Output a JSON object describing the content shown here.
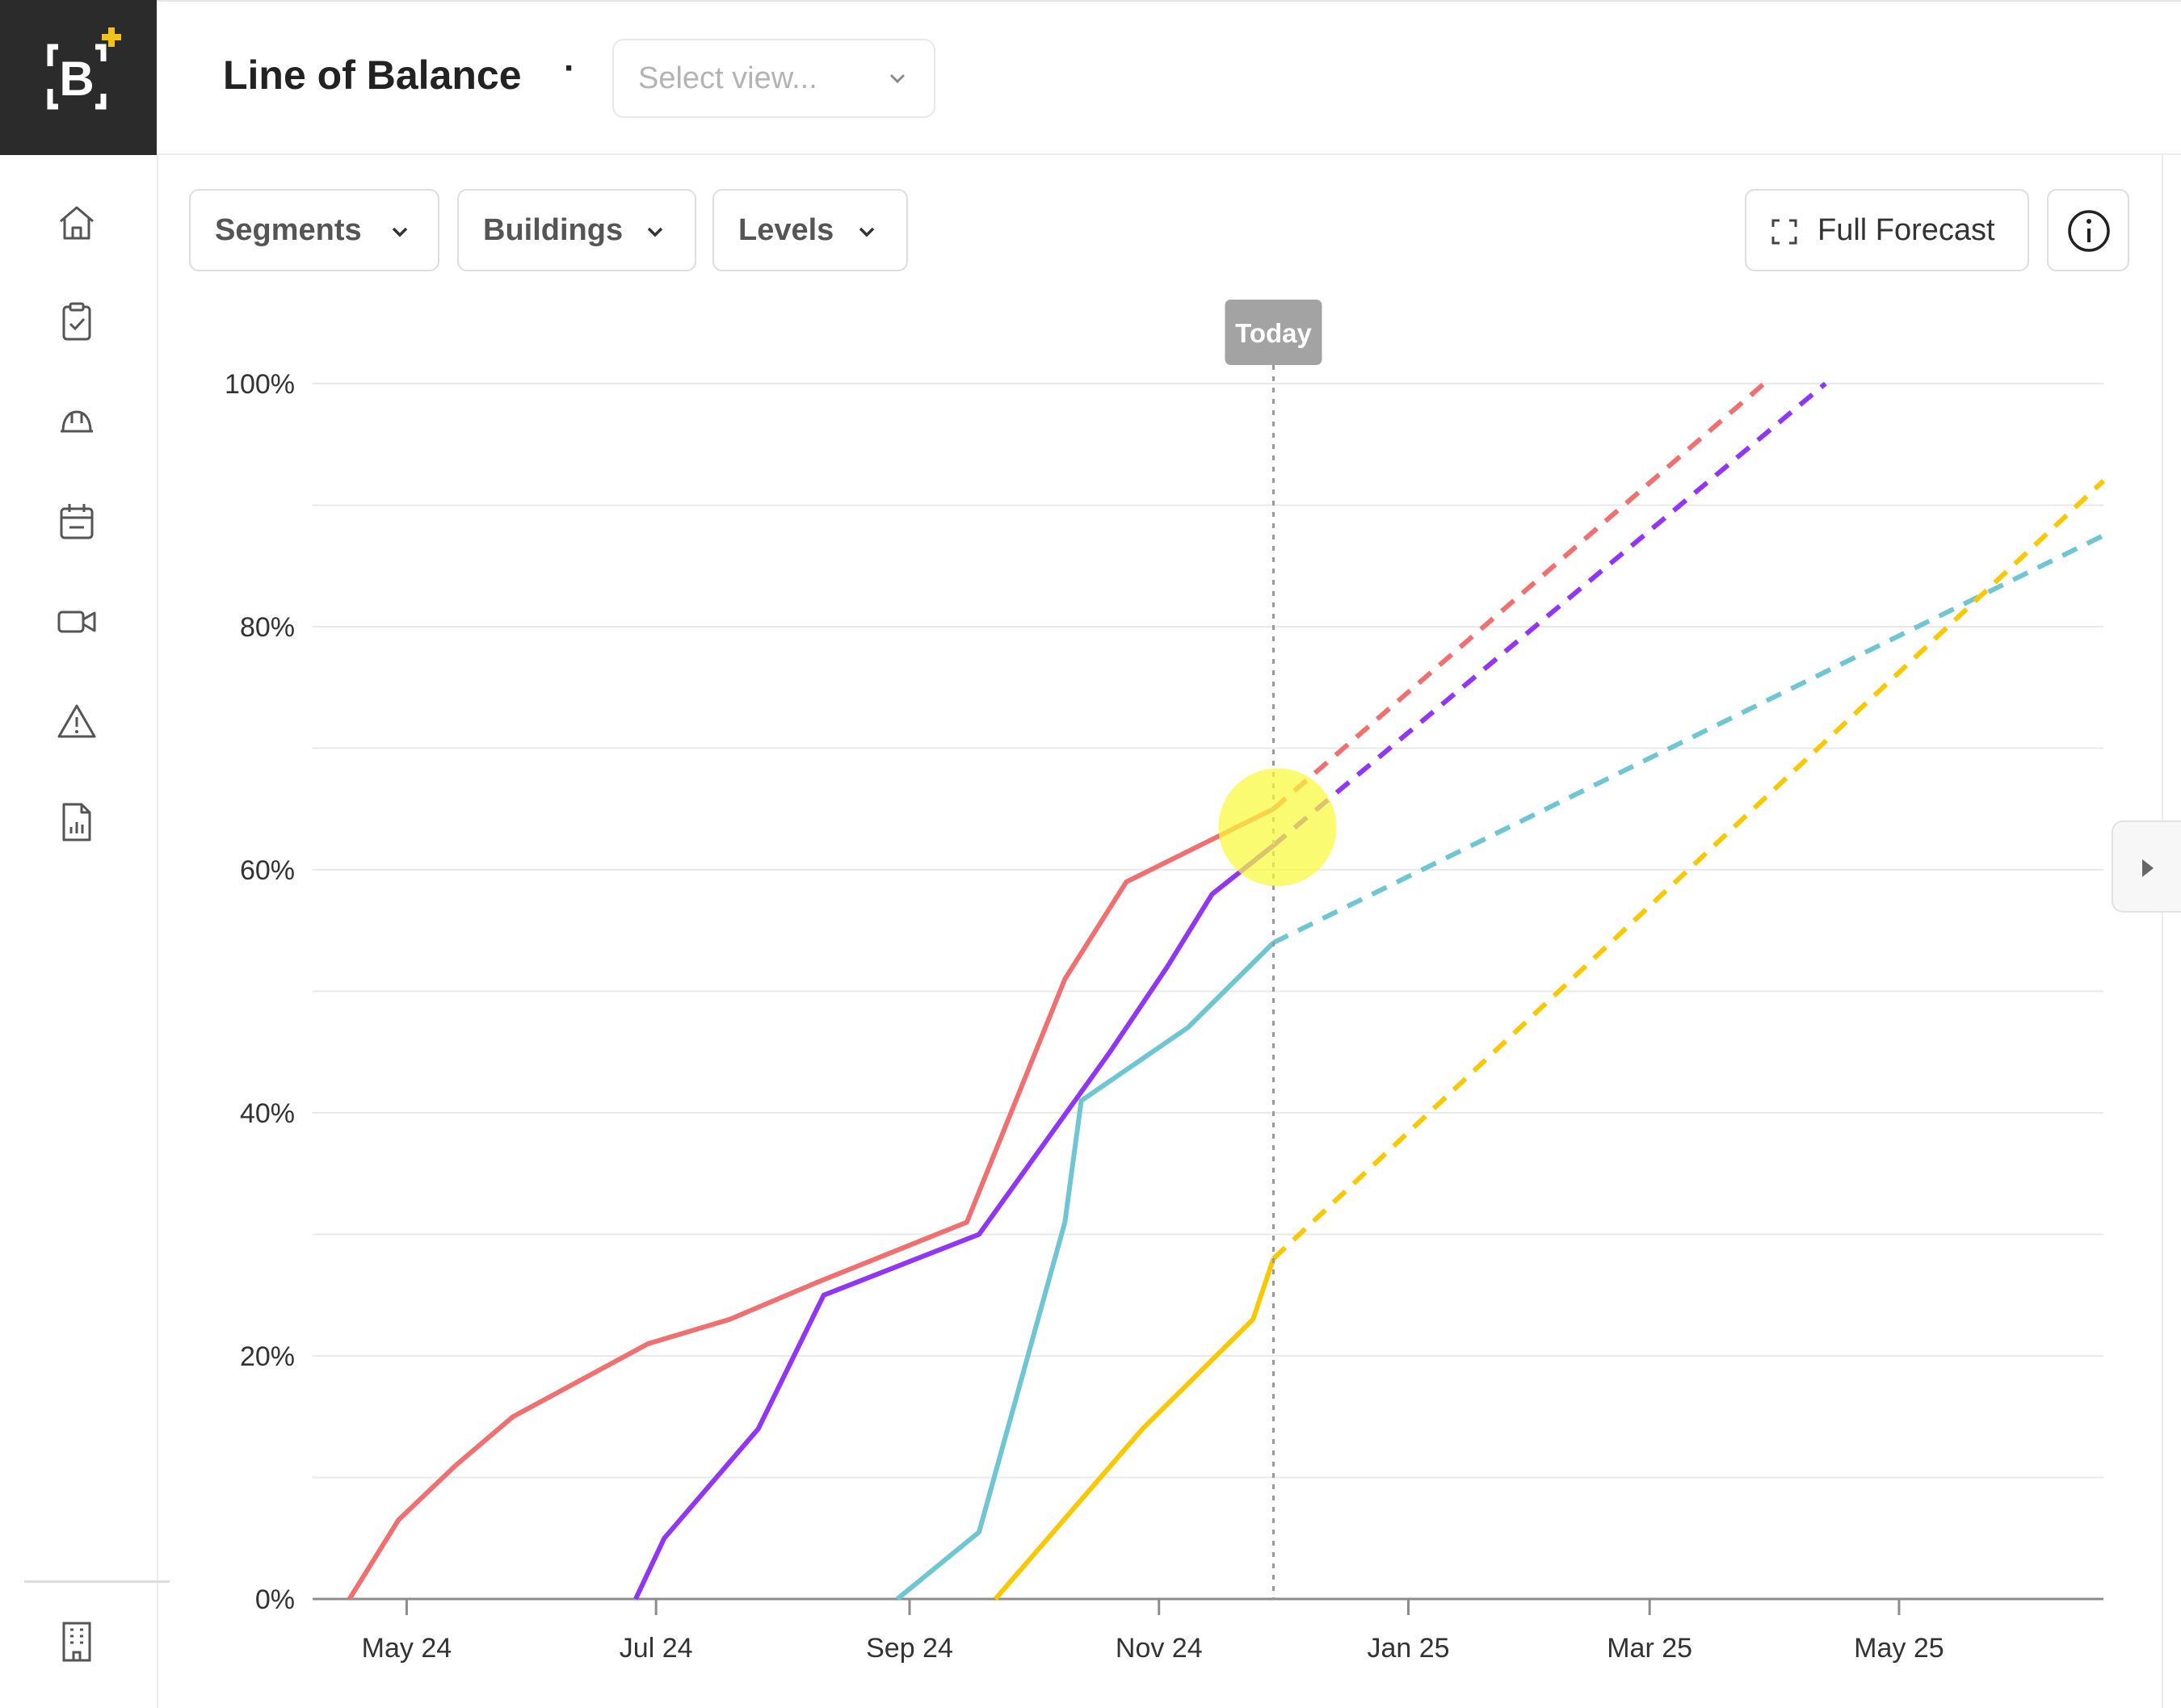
{
  "header": {
    "title": "Line of Balance",
    "separator": "·",
    "view_select_placeholder": "Select view..."
  },
  "toolbar": {
    "segments_label": "Segments",
    "buildings_label": "Buildings",
    "levels_label": "Levels",
    "full_forecast_label": "Full Forecast"
  },
  "sidebar": {
    "items": [
      {
        "icon": "home-icon"
      },
      {
        "icon": "clipboard-check-icon"
      },
      {
        "icon": "hard-hat-icon"
      },
      {
        "icon": "calendar-icon"
      },
      {
        "icon": "video-icon"
      },
      {
        "icon": "warning-icon"
      },
      {
        "icon": "report-icon"
      }
    ],
    "bottom_icon": "building-icon"
  },
  "colors": {
    "logo_accent": "#f2c21b",
    "series_red": "#ef7070",
    "series_purple": "#9036f4",
    "series_teal": "#6fc6d2",
    "series_yellow": "#f8c800",
    "highlight": "#fafa3c",
    "today_badge": "#a3a3a3"
  },
  "chart_data": {
    "type": "line",
    "title": "",
    "xlabel": "",
    "ylabel": "",
    "x_ticks": [
      "May 24",
      "Jul 24",
      "Sep 24",
      "Nov 24",
      "Jan 25",
      "Mar 25",
      "May 25"
    ],
    "y_ticks": [
      "0%",
      "20%",
      "40%",
      "60%",
      "80%",
      "100%"
    ],
    "xlim": [
      "2024-04-08",
      "2025-06-20"
    ],
    "ylim": [
      0,
      100
    ],
    "grid": true,
    "today_marker": {
      "label": "Today",
      "date": "2024-11-29"
    },
    "series": [
      {
        "color": "#ef7070",
        "actual": [
          [
            "2024-04-17",
            0
          ],
          [
            "2024-04-29",
            6.5
          ],
          [
            "2024-05-13",
            11
          ],
          [
            "2024-05-27",
            15
          ],
          [
            "2024-06-29",
            21
          ],
          [
            "2024-07-19",
            23
          ],
          [
            "2024-08-09",
            26
          ],
          [
            "2024-09-15",
            31
          ],
          [
            "2024-10-09",
            51
          ],
          [
            "2024-10-24",
            59
          ],
          [
            "2024-11-29",
            65
          ]
        ],
        "forecast": [
          [
            "2024-11-29",
            65
          ],
          [
            "2025-03-29",
            100
          ]
        ]
      },
      {
        "color": "#9036f4",
        "actual": [
          [
            "2024-06-26",
            0
          ],
          [
            "2024-07-03",
            5
          ],
          [
            "2024-07-26",
            14
          ],
          [
            "2024-08-11",
            25
          ],
          [
            "2024-09-18",
            30
          ],
          [
            "2024-10-20",
            45
          ],
          [
            "2024-11-03",
            52
          ],
          [
            "2024-11-14",
            58
          ],
          [
            "2024-11-29",
            62
          ]
        ],
        "forecast": [
          [
            "2024-11-29",
            62
          ],
          [
            "2025-04-13",
            100
          ]
        ]
      },
      {
        "color": "#6fc6d2",
        "actual": [
          [
            "2024-08-29",
            0
          ],
          [
            "2024-09-18",
            5.5
          ],
          [
            "2024-10-09",
            31
          ],
          [
            "2024-10-13",
            41
          ],
          [
            "2024-11-08",
            47
          ],
          [
            "2024-11-29",
            54
          ]
        ],
        "forecast": [
          [
            "2024-11-29",
            54
          ],
          [
            "2025-06-20",
            87.5
          ]
        ]
      },
      {
        "color": "#f8c800",
        "actual": [
          [
            "2024-09-22",
            0
          ],
          [
            "2024-10-28",
            14
          ],
          [
            "2024-11-24",
            23
          ],
          [
            "2024-11-29",
            28
          ]
        ],
        "forecast": [
          [
            "2024-11-29",
            28
          ],
          [
            "2025-06-20",
            92
          ]
        ]
      }
    ]
  }
}
